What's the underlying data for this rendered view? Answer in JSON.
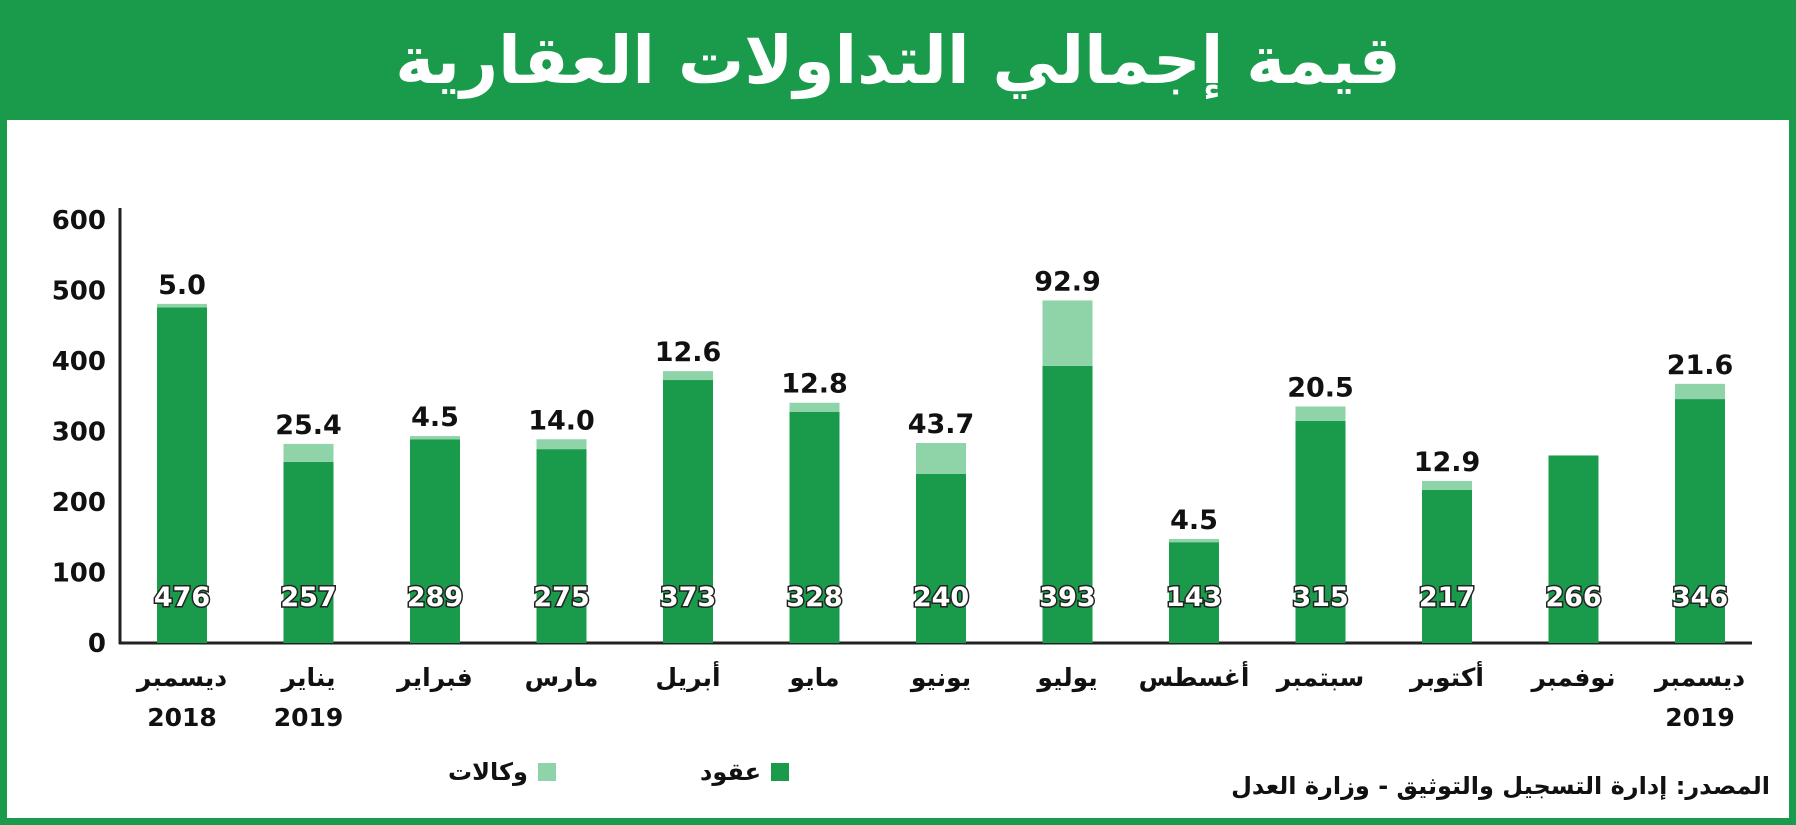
{
  "title": "قيمة إجمالي التداولات العقارية",
  "source": "المصدر: إدارة التسجيل والتوثيق - وزارة العدل",
  "colors": {
    "dark": "#1a9a4b",
    "light": "#8fd3a8",
    "frame": "#1a9a4b"
  },
  "chart_data": {
    "type": "bar",
    "stacked": true,
    "ylim": [
      0,
      600
    ],
    "yticks": [
      0,
      100,
      200,
      300,
      400,
      500,
      600
    ],
    "grid": false,
    "legend_position": "bottom",
    "categories": [
      [
        "ديسمبر",
        "2018"
      ],
      [
        "يناير",
        "2019"
      ],
      [
        "فبراير"
      ],
      [
        "مارس"
      ],
      [
        "أبريل"
      ],
      [
        "مايو"
      ],
      [
        "يونيو"
      ],
      [
        "يوليو"
      ],
      [
        "أغسطس"
      ],
      [
        "سبتمبر"
      ],
      [
        "أكتوبر"
      ],
      [
        "نوفمبر"
      ],
      [
        "ديسمبر",
        "2019"
      ]
    ],
    "series": [
      {
        "name": "عقود",
        "values": [
          476,
          257,
          289,
          275,
          373,
          328,
          240,
          393,
          143,
          315,
          217,
          266,
          346
        ],
        "labels": [
          "476",
          "257",
          "289",
          "275",
          "373",
          "328",
          "240",
          "393",
          "143",
          "315",
          "217",
          "266",
          "346"
        ]
      },
      {
        "name": "وكالات",
        "values": [
          5.0,
          25.4,
          4.5,
          14.0,
          12.6,
          12.8,
          43.7,
          92.9,
          4.5,
          20.5,
          12.9,
          null,
          21.6
        ],
        "labels": [
          "5.0",
          "25.4",
          "4.5",
          "14.0",
          "12.6",
          "12.8",
          "43.7",
          "92.9",
          "4.5",
          "20.5",
          "12.9",
          "",
          "21.6"
        ]
      }
    ]
  }
}
